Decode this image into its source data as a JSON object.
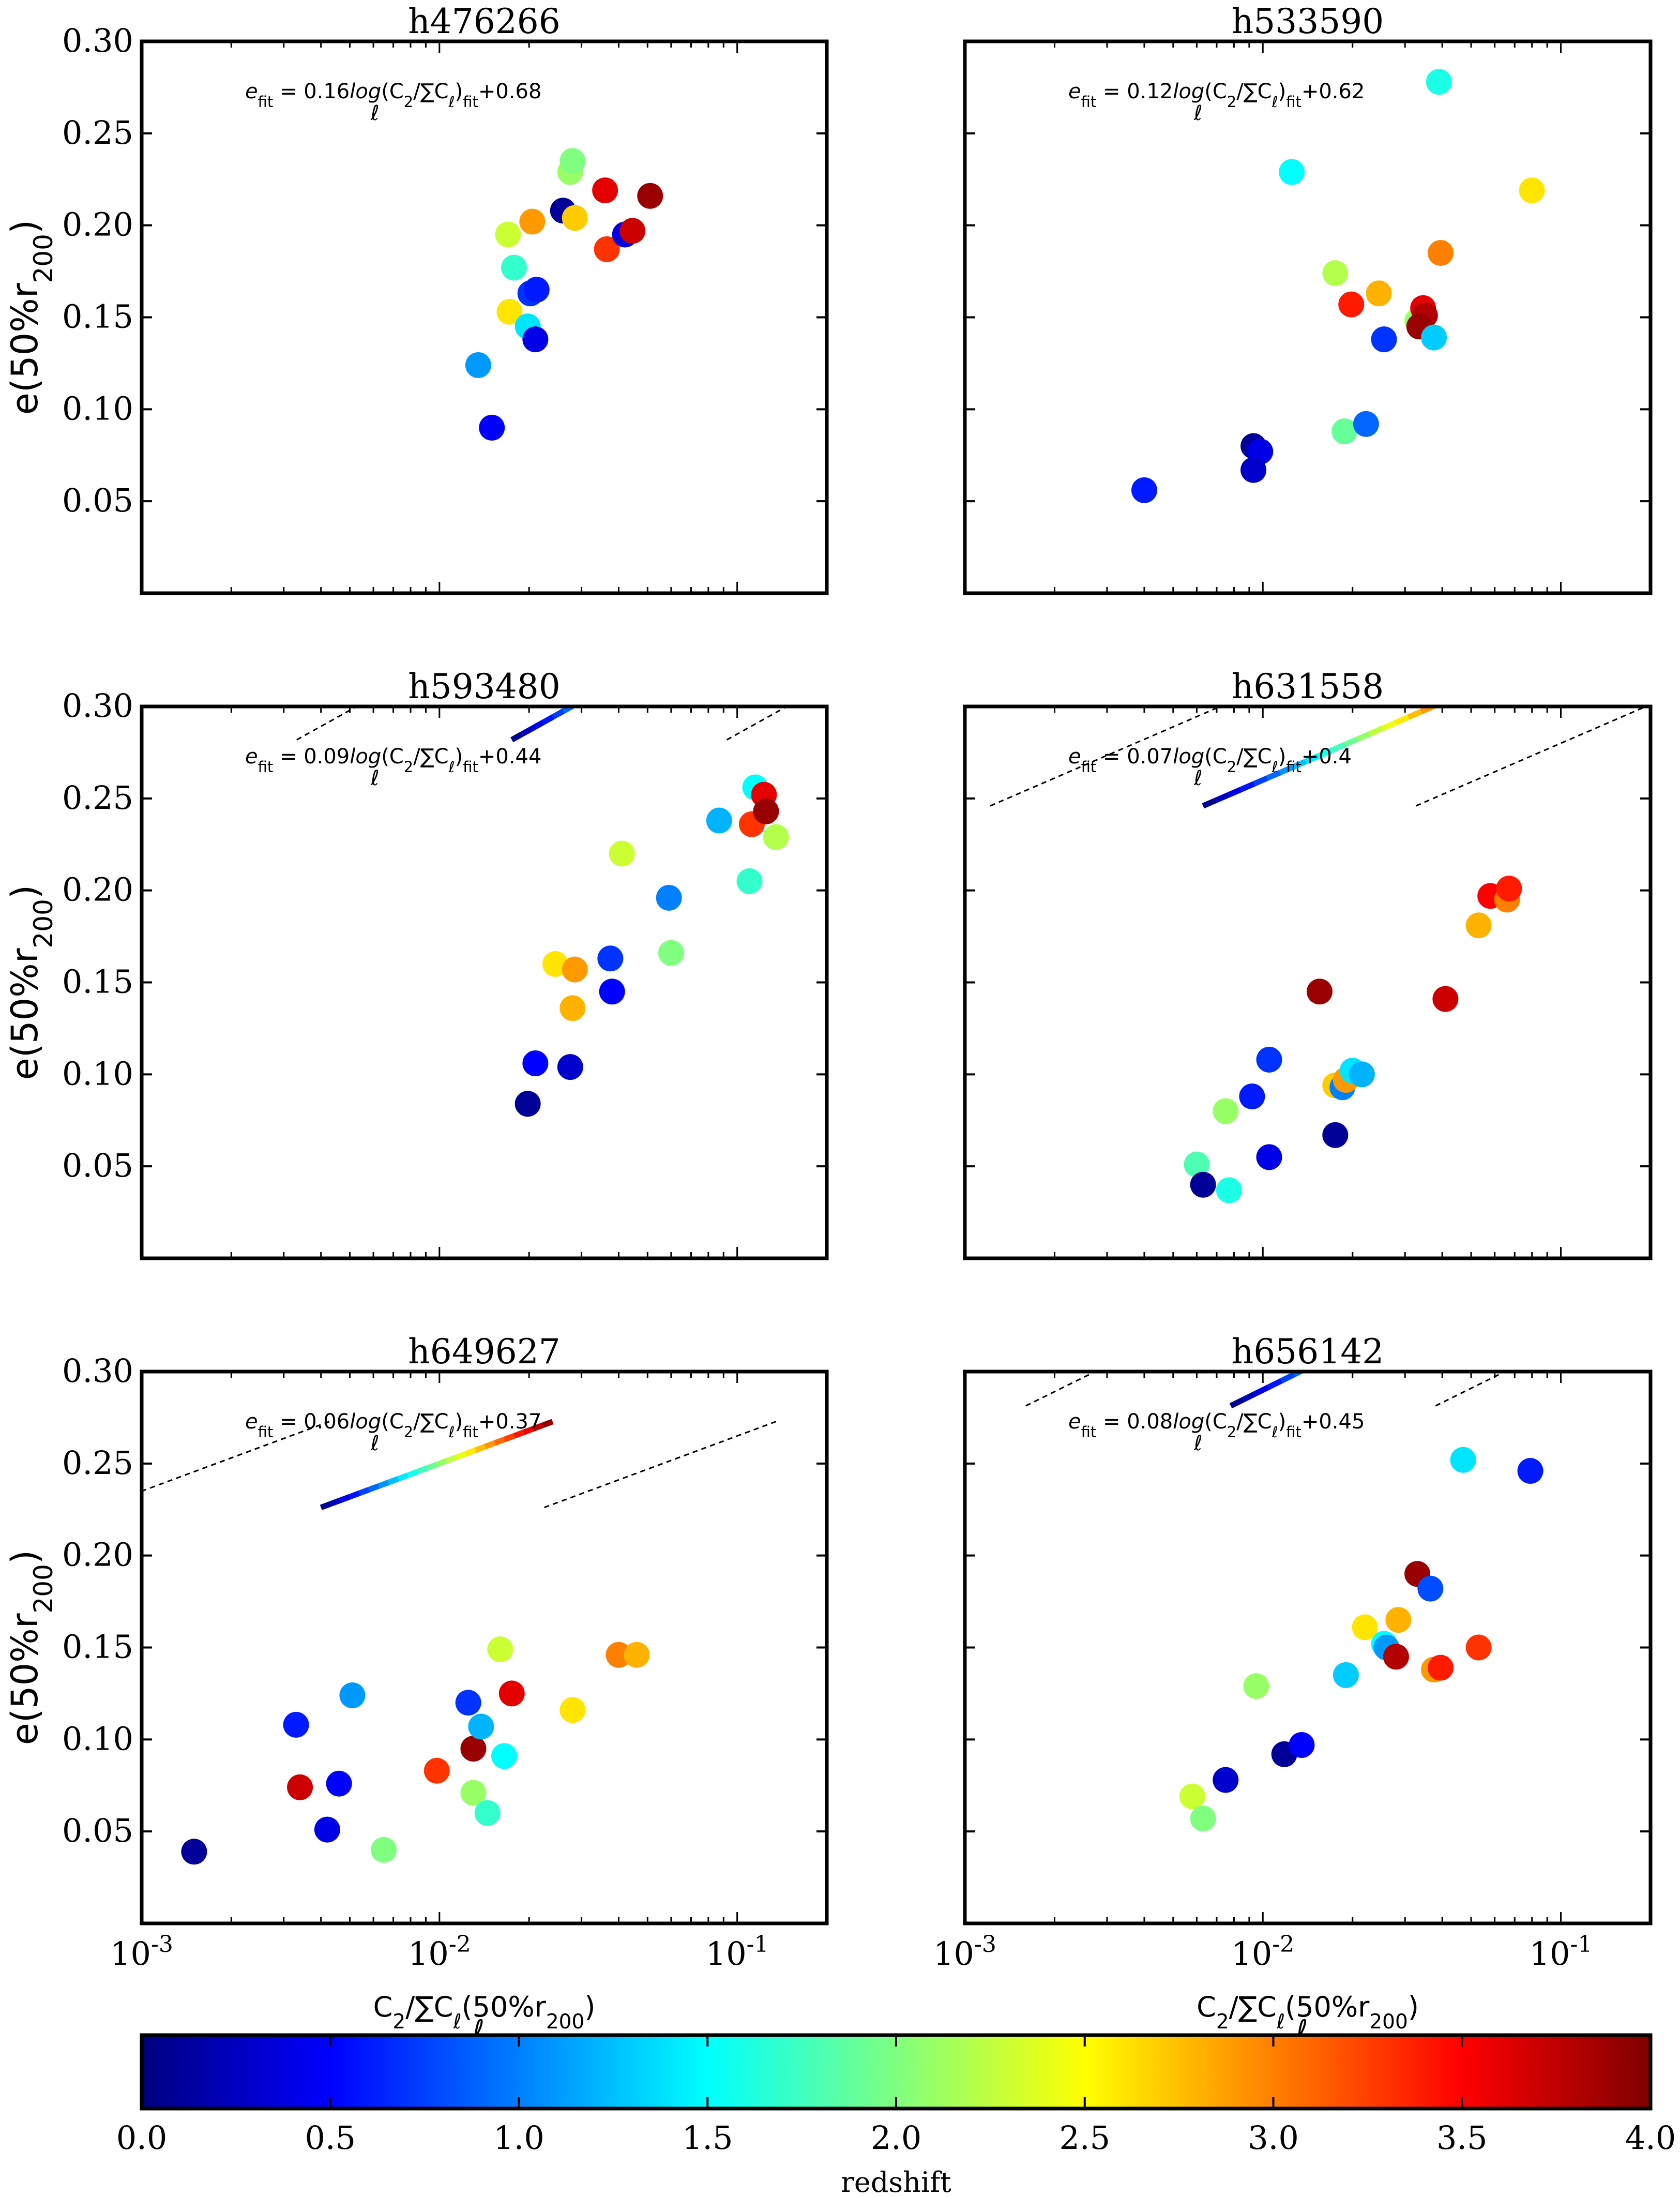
{
  "colorbar": {
    "label": "redshift",
    "ticks": [
      "0.0",
      "0.5",
      "1.0",
      "1.5",
      "2.0",
      "2.5",
      "3.0",
      "3.5",
      "4.0"
    ],
    "range": [
      0,
      4
    ],
    "colormap": "jet"
  },
  "axis_text": {
    "ylabel": "e(50%r200)",
    "xlabel": "C2/ΣℓCℓ(50%r200)",
    "yticks": [
      "0.05",
      "0.10",
      "0.15",
      "0.20",
      "0.25",
      "0.30"
    ],
    "xticks": [
      "10-3",
      "10-2",
      "10-1"
    ]
  },
  "chart_data": [
    {
      "type": "scatter",
      "title": "h476266",
      "annotation": "efit = 0.16log(C2/ΣℓCℓ)fit+0.68",
      "xscale": "log",
      "xlim": [
        0.001,
        0.2
      ],
      "ylim": [
        0.0,
        0.3
      ],
      "fit": {
        "slope": 0.16,
        "intercept": 0.68,
        "x_range": [
          0.0135,
          0.0315
        ]
      },
      "band": {
        "offset": 0.06
      },
      "points": [
        {
          "x": 0.0135,
          "y": 0.124,
          "z": 1.1
        },
        {
          "x": 0.015,
          "y": 0.09,
          "z": 0.5
        },
        {
          "x": 0.017,
          "y": 0.195,
          "z": 2.3
        },
        {
          "x": 0.0178,
          "y": 0.177,
          "z": 1.7
        },
        {
          "x": 0.0172,
          "y": 0.153,
          "z": 2.6
        },
        {
          "x": 0.0198,
          "y": 0.145,
          "z": 1.4
        },
        {
          "x": 0.0202,
          "y": 0.163,
          "z": 0.7
        },
        {
          "x": 0.0212,
          "y": 0.165,
          "z": 0.6
        },
        {
          "x": 0.021,
          "y": 0.138,
          "z": 0.4
        },
        {
          "x": 0.0205,
          "y": 0.202,
          "z": 2.9
        },
        {
          "x": 0.026,
          "y": 0.208,
          "z": 0.1
        },
        {
          "x": 0.0275,
          "y": 0.229,
          "z": 2.1
        },
        {
          "x": 0.028,
          "y": 0.235,
          "z": 2.0
        },
        {
          "x": 0.0285,
          "y": 0.204,
          "z": 2.7
        },
        {
          "x": 0.036,
          "y": 0.219,
          "z": 3.6
        },
        {
          "x": 0.0365,
          "y": 0.187,
          "z": 3.3
        },
        {
          "x": 0.042,
          "y": 0.195,
          "z": 0.4
        },
        {
          "x": 0.0445,
          "y": 0.197,
          "z": 3.7
        },
        {
          "x": 0.051,
          "y": 0.216,
          "z": 3.9
        }
      ]
    },
    {
      "type": "scatter",
      "title": "h533590",
      "annotation": "efit = 0.12log(C2/ΣℓCℓ)fit+0.62",
      "xscale": "log",
      "xlim": [
        0.001,
        0.2
      ],
      "ylim": [
        0.0,
        0.3
      ],
      "fit": {
        "slope": 0.12,
        "intercept": 0.62,
        "x_range": [
          0.0105,
          0.068
        ]
      },
      "band": {
        "offset": 0.085
      },
      "points": [
        {
          "x": 0.004,
          "y": 0.056,
          "z": 0.6
        },
        {
          "x": 0.0093,
          "y": 0.08,
          "z": 0.1
        },
        {
          "x": 0.0098,
          "y": 0.077,
          "z": 0.4
        },
        {
          "x": 0.0093,
          "y": 0.067,
          "z": 0.3
        },
        {
          "x": 0.0125,
          "y": 0.229,
          "z": 1.5
        },
        {
          "x": 0.0175,
          "y": 0.174,
          "z": 2.2
        },
        {
          "x": 0.0188,
          "y": 0.088,
          "z": 1.9
        },
        {
          "x": 0.0198,
          "y": 0.157,
          "z": 3.4
        },
        {
          "x": 0.0222,
          "y": 0.092,
          "z": 0.9
        },
        {
          "x": 0.0245,
          "y": 0.163,
          "z": 2.8
        },
        {
          "x": 0.0255,
          "y": 0.138,
          "z": 0.7
        },
        {
          "x": 0.033,
          "y": 0.148,
          "z": 2.1
        },
        {
          "x": 0.0345,
          "y": 0.155,
          "z": 3.6
        },
        {
          "x": 0.035,
          "y": 0.151,
          "z": 3.8
        },
        {
          "x": 0.0335,
          "y": 0.145,
          "z": 3.9
        },
        {
          "x": 0.0375,
          "y": 0.139,
          "z": 1.3
        },
        {
          "x": 0.0395,
          "y": 0.185,
          "z": 3.0
        },
        {
          "x": 0.039,
          "y": 0.278,
          "z": 1.6
        },
        {
          "x": 0.08,
          "y": 0.219,
          "z": 2.6
        }
      ]
    },
    {
      "type": "scatter",
      "title": "h593480",
      "annotation": "efit = 0.09log(C2/ΣℓCℓ)fit+0.44",
      "xscale": "log",
      "xlim": [
        0.001,
        0.2
      ],
      "ylim": [
        0.0,
        0.3
      ],
      "fit": {
        "slope": 0.09,
        "intercept": 0.44,
        "x_range": [
          0.0175,
          0.12
        ]
      },
      "band": {
        "offset": 0.065
      },
      "points": [
        {
          "x": 0.0198,
          "y": 0.084,
          "z": 0.1
        },
        {
          "x": 0.021,
          "y": 0.106,
          "z": 0.5
        },
        {
          "x": 0.0245,
          "y": 0.16,
          "z": 2.6
        },
        {
          "x": 0.0275,
          "y": 0.104,
          "z": 0.3
        },
        {
          "x": 0.028,
          "y": 0.136,
          "z": 2.8
        },
        {
          "x": 0.0285,
          "y": 0.157,
          "z": 2.9
        },
        {
          "x": 0.0375,
          "y": 0.163,
          "z": 0.7
        },
        {
          "x": 0.038,
          "y": 0.145,
          "z": 0.5
        },
        {
          "x": 0.041,
          "y": 0.22,
          "z": 2.3
        },
        {
          "x": 0.059,
          "y": 0.196,
          "z": 1.0
        },
        {
          "x": 0.06,
          "y": 0.166,
          "z": 2.0
        },
        {
          "x": 0.087,
          "y": 0.238,
          "z": 1.2
        },
        {
          "x": 0.11,
          "y": 0.205,
          "z": 1.7
        },
        {
          "x": 0.112,
          "y": 0.236,
          "z": 3.3
        },
        {
          "x": 0.115,
          "y": 0.256,
          "z": 1.5
        },
        {
          "x": 0.123,
          "y": 0.252,
          "z": 3.6
        },
        {
          "x": 0.125,
          "y": 0.243,
          "z": 3.9
        },
        {
          "x": 0.135,
          "y": 0.229,
          "z": 2.2
        }
      ]
    },
    {
      "type": "scatter",
      "title": "h631558",
      "annotation": "efit = 0.07log(C2/ΣℓCℓ)fit+0.4",
      "xscale": "log",
      "xlim": [
        0.001,
        0.2
      ],
      "ylim": [
        0.0,
        0.3
      ],
      "fit": {
        "slope": 0.07,
        "intercept": 0.4,
        "x_range": [
          0.0063,
          0.068
        ]
      },
      "band": {
        "offset": 0.05
      },
      "points": [
        {
          "x": 0.006,
          "y": 0.051,
          "z": 1.8
        },
        {
          "x": 0.0063,
          "y": 0.04,
          "z": 0.1
        },
        {
          "x": 0.0075,
          "y": 0.08,
          "z": 2.1
        },
        {
          "x": 0.0077,
          "y": 0.037,
          "z": 1.6
        },
        {
          "x": 0.0092,
          "y": 0.088,
          "z": 0.6
        },
        {
          "x": 0.0105,
          "y": 0.108,
          "z": 0.7
        },
        {
          "x": 0.0105,
          "y": 0.055,
          "z": 0.4
        },
        {
          "x": 0.0155,
          "y": 0.145,
          "z": 3.9
        },
        {
          "x": 0.0175,
          "y": 0.067,
          "z": 0.1
        },
        {
          "x": 0.0175,
          "y": 0.094,
          "z": 2.7
        },
        {
          "x": 0.0185,
          "y": 0.093,
          "z": 1.0
        },
        {
          "x": 0.019,
          "y": 0.097,
          "z": 2.9
        },
        {
          "x": 0.02,
          "y": 0.102,
          "z": 1.4
        },
        {
          "x": 0.0215,
          "y": 0.1,
          "z": 1.2
        },
        {
          "x": 0.041,
          "y": 0.141,
          "z": 3.7
        },
        {
          "x": 0.053,
          "y": 0.181,
          "z": 2.8
        },
        {
          "x": 0.058,
          "y": 0.197,
          "z": 3.5
        },
        {
          "x": 0.066,
          "y": 0.195,
          "z": 3.0
        },
        {
          "x": 0.067,
          "y": 0.201,
          "z": 3.4
        }
      ]
    },
    {
      "type": "scatter",
      "title": "h649627",
      "annotation": "efit = 0.06log(C2/ΣℓCℓ)fit+0.37",
      "xscale": "log",
      "xlim": [
        0.001,
        0.2
      ],
      "ylim": [
        0.0,
        0.3
      ],
      "fit": {
        "slope": 0.06,
        "intercept": 0.37,
        "x_range": [
          0.004,
          0.024
        ]
      },
      "band": {
        "offset": 0.045
      },
      "points": [
        {
          "x": 0.0015,
          "y": 0.039,
          "z": 0.1
        },
        {
          "x": 0.0033,
          "y": 0.108,
          "z": 0.6
        },
        {
          "x": 0.0034,
          "y": 0.074,
          "z": 3.7
        },
        {
          "x": 0.0042,
          "y": 0.051,
          "z": 0.4
        },
        {
          "x": 0.0046,
          "y": 0.076,
          "z": 0.5
        },
        {
          "x": 0.0051,
          "y": 0.124,
          "z": 1.1
        },
        {
          "x": 0.0065,
          "y": 0.04,
          "z": 2.0
        },
        {
          "x": 0.0098,
          "y": 0.083,
          "z": 3.3
        },
        {
          "x": 0.0125,
          "y": 0.12,
          "z": 0.7
        },
        {
          "x": 0.013,
          "y": 0.095,
          "z": 3.9
        },
        {
          "x": 0.013,
          "y": 0.071,
          "z": 2.1
        },
        {
          "x": 0.0138,
          "y": 0.107,
          "z": 1.2
        },
        {
          "x": 0.0145,
          "y": 0.06,
          "z": 1.7
        },
        {
          "x": 0.016,
          "y": 0.149,
          "z": 2.3
        },
        {
          "x": 0.0165,
          "y": 0.091,
          "z": 1.5
        },
        {
          "x": 0.0175,
          "y": 0.125,
          "z": 3.6
        },
        {
          "x": 0.028,
          "y": 0.116,
          "z": 2.6
        },
        {
          "x": 0.04,
          "y": 0.146,
          "z": 3.0
        },
        {
          "x": 0.046,
          "y": 0.146,
          "z": 2.8
        }
      ]
    },
    {
      "type": "scatter",
      "title": "h656142",
      "annotation": "efit = 0.08log(C2/ΣℓCℓ)fit+0.45",
      "xscale": "log",
      "xlim": [
        0.001,
        0.2
      ],
      "ylim": [
        0.0,
        0.3
      ],
      "fit": {
        "slope": 0.08,
        "intercept": 0.45,
        "x_range": [
          0.0078,
          0.082
        ]
      },
      "band": {
        "offset": 0.055
      },
      "points": [
        {
          "x": 0.0058,
          "y": 0.069,
          "z": 2.3
        },
        {
          "x": 0.0063,
          "y": 0.057,
          "z": 2.0
        },
        {
          "x": 0.0075,
          "y": 0.078,
          "z": 0.3
        },
        {
          "x": 0.0095,
          "y": 0.129,
          "z": 2.1
        },
        {
          "x": 0.0118,
          "y": 0.092,
          "z": 0.1
        },
        {
          "x": 0.0135,
          "y": 0.097,
          "z": 0.5
        },
        {
          "x": 0.019,
          "y": 0.135,
          "z": 1.3
        },
        {
          "x": 0.022,
          "y": 0.161,
          "z": 2.6
        },
        {
          "x": 0.0255,
          "y": 0.152,
          "z": 1.5
        },
        {
          "x": 0.026,
          "y": 0.15,
          "z": 1.1
        },
        {
          "x": 0.028,
          "y": 0.145,
          "z": 3.8
        },
        {
          "x": 0.0285,
          "y": 0.165,
          "z": 2.8
        },
        {
          "x": 0.033,
          "y": 0.19,
          "z": 3.9
        },
        {
          "x": 0.0365,
          "y": 0.182,
          "z": 0.8
        },
        {
          "x": 0.0375,
          "y": 0.138,
          "z": 2.9
        },
        {
          "x": 0.0395,
          "y": 0.139,
          "z": 3.4
        },
        {
          "x": 0.053,
          "y": 0.15,
          "z": 3.3
        },
        {
          "x": 0.047,
          "y": 0.252,
          "z": 1.4
        },
        {
          "x": 0.079,
          "y": 0.246,
          "z": 0.6
        }
      ]
    }
  ]
}
